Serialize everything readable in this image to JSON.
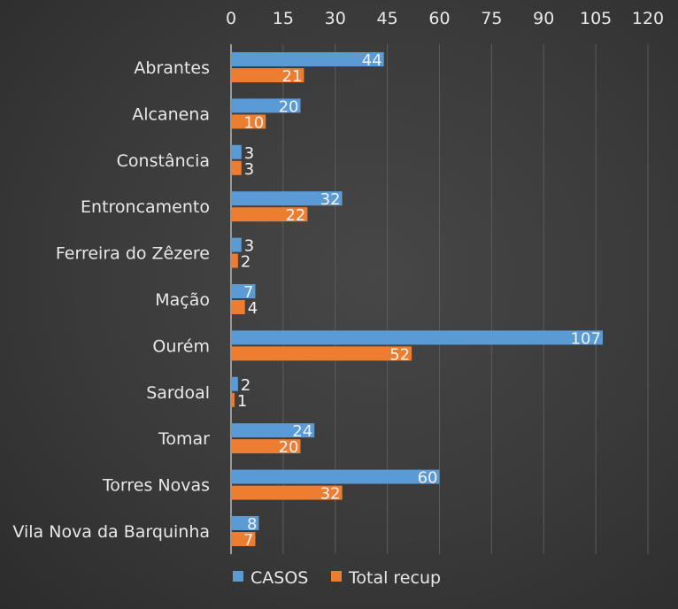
{
  "chart_data": {
    "type": "bar",
    "orientation": "horizontal",
    "title": "",
    "xlabel": "",
    "ylabel": "",
    "xlim": [
      0,
      120
    ],
    "x_ticks": [
      "0",
      "15",
      "30",
      "45",
      "60",
      "75",
      "90",
      "105",
      "120"
    ],
    "grid": true,
    "legend_position": "bottom",
    "categories": [
      "Abrantes",
      "Alcanena",
      "Constância",
      "Entroncamento",
      "Ferreira do Zêzere",
      "Mação",
      "Ourém",
      "Sardoal",
      "Tomar",
      "Torres Novas",
      "Vila Nova da Barquinha"
    ],
    "series": [
      {
        "name": "CASOS",
        "color": "#5b9bd5",
        "values": [
          44,
          20,
          3,
          32,
          3,
          7,
          107,
          2,
          24,
          60,
          8
        ]
      },
      {
        "name": "Total recup",
        "color": "#ed7d31",
        "values": [
          21,
          10,
          3,
          22,
          2,
          4,
          52,
          1,
          20,
          32,
          7
        ]
      }
    ]
  }
}
